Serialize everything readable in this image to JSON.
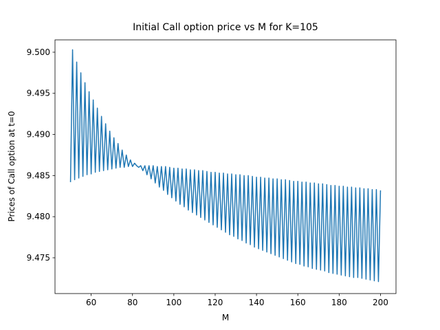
{
  "chart_data": {
    "type": "line",
    "title": "Initial Call option price vs M for K=105",
    "xlabel": "M",
    "ylabel": "Prices of Call option at t=0",
    "x": [
      50,
      51,
      52,
      53,
      54,
      55,
      56,
      57,
      58,
      59,
      60,
      61,
      62,
      63,
      64,
      65,
      66,
      67,
      68,
      69,
      70,
      71,
      72,
      73,
      74,
      75,
      76,
      77,
      78,
      79,
      80,
      81,
      82,
      83,
      84,
      85,
      86,
      87,
      88,
      89,
      90,
      91,
      92,
      93,
      94,
      95,
      96,
      97,
      98,
      99,
      100,
      101,
      102,
      103,
      104,
      105,
      106,
      107,
      108,
      109,
      110,
      111,
      112,
      113,
      114,
      115,
      116,
      117,
      118,
      119,
      120,
      121,
      122,
      123,
      124,
      125,
      126,
      127,
      128,
      129,
      130,
      131,
      132,
      133,
      134,
      135,
      136,
      137,
      138,
      139,
      140,
      141,
      142,
      143,
      144,
      145,
      146,
      147,
      148,
      149,
      150,
      151,
      152,
      153,
      154,
      155,
      156,
      157,
      158,
      159,
      160,
      161,
      162,
      163,
      164,
      165,
      166,
      167,
      168,
      169,
      170,
      171,
      172,
      173,
      174,
      175,
      176,
      177,
      178,
      179,
      180,
      181,
      182,
      183,
      184,
      185,
      186,
      187,
      188,
      189,
      190,
      191,
      192,
      193,
      194,
      195,
      196,
      197,
      198,
      199,
      200
    ],
    "series": [
      {
        "color": "#1f77b4",
        "values": [
          9.4842,
          9.5003,
          9.4845,
          9.4988,
          9.4847,
          9.4975,
          9.4849,
          9.4963,
          9.4851,
          9.4952,
          9.4852,
          9.4942,
          9.4854,
          9.4932,
          9.4855,
          9.4922,
          9.4856,
          9.4913,
          9.4857,
          9.4904,
          9.4858,
          9.4896,
          9.4859,
          9.4889,
          9.486,
          9.4881,
          9.486,
          9.4875,
          9.4861,
          9.4869,
          9.4861,
          9.4865,
          9.4862,
          9.486,
          9.4862,
          9.4856,
          9.4862,
          9.4851,
          9.4862,
          9.4846,
          9.4862,
          9.4841,
          9.4861,
          9.4836,
          9.4861,
          9.4832,
          9.4861,
          9.4827,
          9.486,
          9.4823,
          9.4859,
          9.4819,
          9.4859,
          9.4815,
          9.4858,
          9.4812,
          9.4858,
          9.4808,
          9.4857,
          9.4805,
          9.4857,
          9.4802,
          9.4856,
          9.4799,
          9.4856,
          9.4796,
          9.4855,
          9.4793,
          9.4854,
          9.479,
          9.4854,
          9.4787,
          9.4853,
          9.4784,
          9.4853,
          9.4781,
          9.4852,
          9.4778,
          9.4852,
          9.4776,
          9.4851,
          9.4773,
          9.4851,
          9.4771,
          9.485,
          9.4768,
          9.485,
          9.4766,
          9.4849,
          9.4763,
          9.4848,
          9.4761,
          9.4848,
          9.4759,
          9.4847,
          9.4757,
          9.4847,
          9.4755,
          9.4846,
          9.4753,
          9.4846,
          9.4751,
          9.4845,
          9.4749,
          9.4845,
          9.4747,
          9.4844,
          9.4745,
          9.4843,
          9.4743,
          9.4843,
          9.4742,
          9.4842,
          9.474,
          9.4842,
          9.4739,
          9.4841,
          9.4737,
          9.4841,
          9.4736,
          9.484,
          9.4735,
          9.484,
          9.4734,
          9.4839,
          9.4732,
          9.4838,
          9.4731,
          9.4838,
          9.473,
          9.4837,
          9.4729,
          9.4837,
          9.4728,
          9.4836,
          9.4727,
          9.4836,
          9.4726,
          9.4835,
          9.4726,
          9.4835,
          9.4725,
          9.4834,
          9.4724,
          9.4834,
          9.4723,
          9.4833,
          9.4722,
          9.4833,
          9.4721,
          9.4832
        ]
      }
    ],
    "xlim": [
      42.5,
      207.5
    ],
    "xticks": [
      60,
      80,
      100,
      120,
      140,
      160,
      180,
      200
    ],
    "ylim": [
      9.47065,
      9.5015
    ],
    "yticks": [
      9.475,
      {
        "value": 9.48,
        "label": "9.480"
      },
      9.485,
      {
        "value": 9.49,
        "label": "9.490"
      },
      9.495,
      {
        "value": 9.5,
        "label": "9.500"
      }
    ],
    "grid": false
  }
}
